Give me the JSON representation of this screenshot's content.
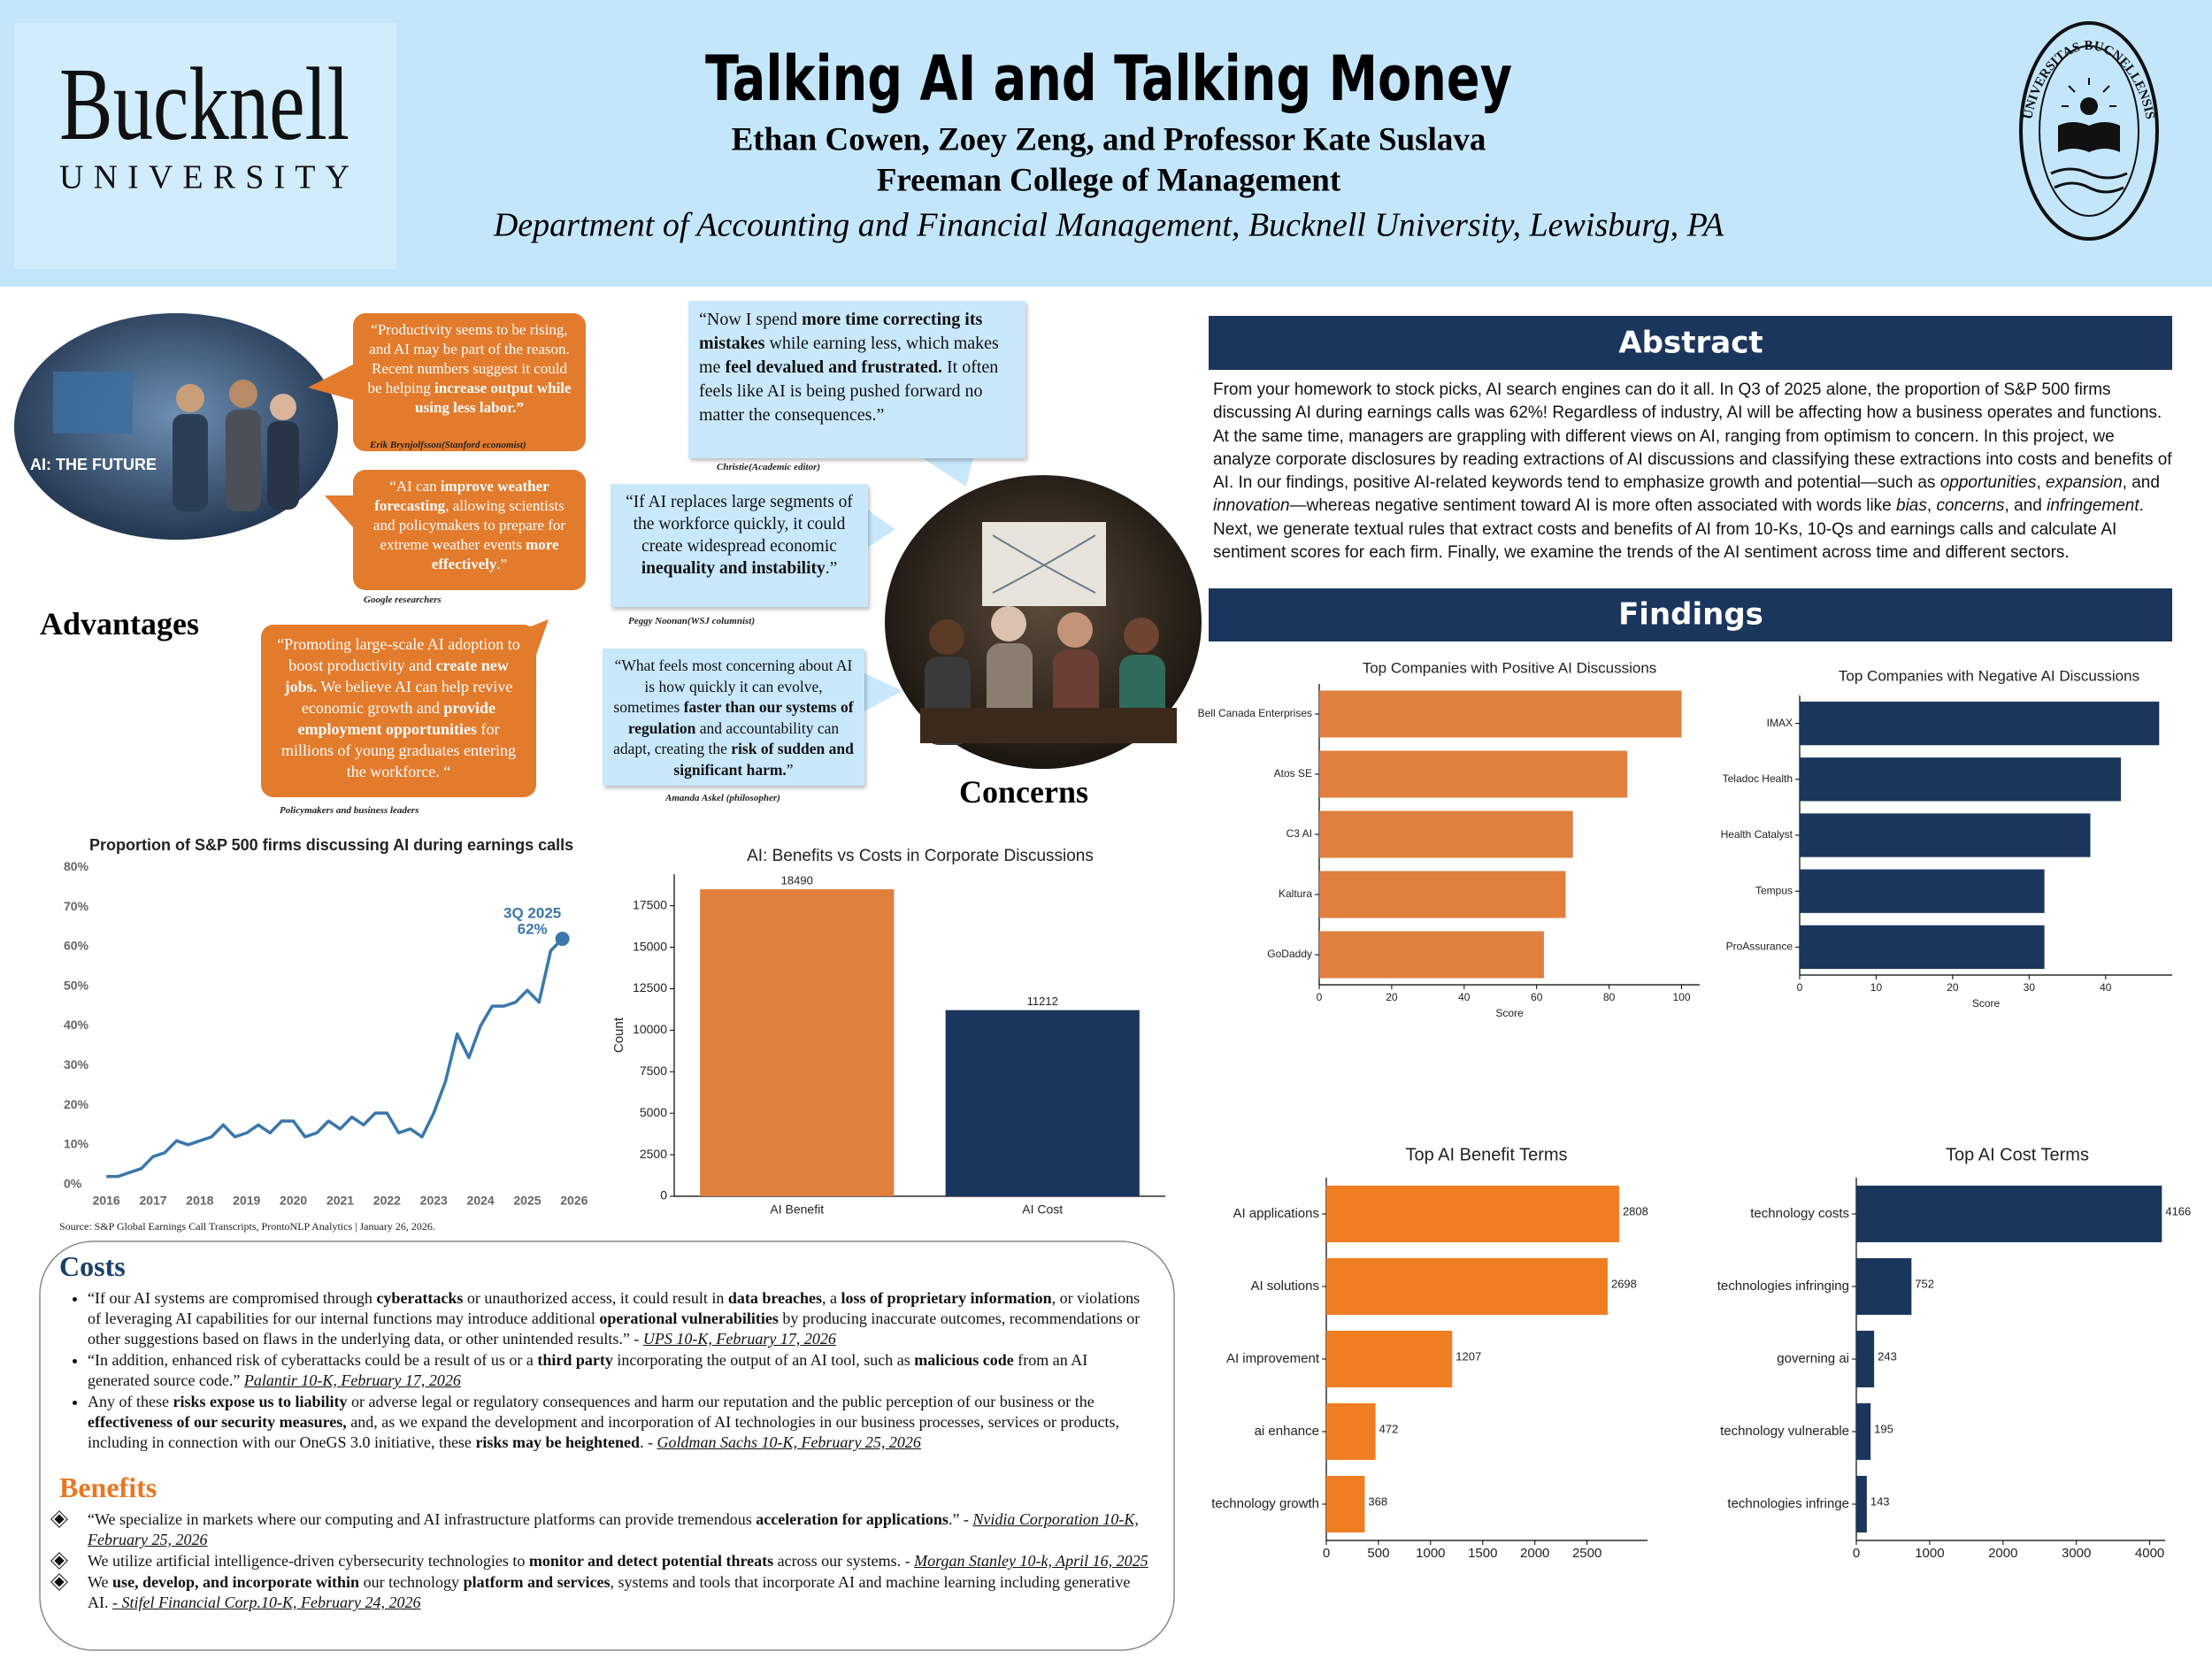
{
  "header": {
    "logo_name": "Bucknell",
    "logo_subtitle": "UNIVERSITY",
    "title": "Talking AI and Talking Money",
    "authors": "Ethan Cowen, Zoey Zeng, and Professor Kate Suslava",
    "college": "Freeman College of Management",
    "department": "Department of Accounting and Financial Management, Bucknell University, Lewisburg, PA",
    "seal_text": "UNIVERSITAS BUCNELLENSIS"
  },
  "advantages": {
    "heading": "Advantages",
    "photo_caption": "AI: THE FUTURE",
    "quotes": [
      {
        "text": [
          "“Productivity seems to be rising, and AI may be part of the reason. Recent numbers suggest it could be helping ",
          {
            "bold": "increase output while using less labor.”"
          }
        ],
        "source": "Erik Brynjolfsson(Stanford economist)"
      },
      {
        "text": [
          "“AI can ",
          {
            "bold": "improve weather forecasting"
          },
          ", allowing scientists and policymakers to prepare for extreme weather events ",
          {
            "bold": "more effectively"
          },
          ".”"
        ],
        "source": "Google researchers"
      },
      {
        "text": [
          "“Promoting large-scale AI adoption to boost productivity and ",
          {
            "bold": "create new jobs."
          },
          " We believe AI can help revive economic growth and ",
          {
            "bold": "provide employment opportunities"
          },
          " for millions of young graduates entering the workforce. “"
        ],
        "source": "Policymakers and business leaders"
      }
    ]
  },
  "concerns": {
    "heading": "Concerns",
    "quotes": [
      {
        "text": [
          "“Now I spend ",
          {
            "bold": "more time correcting its mistakes"
          },
          " while earning less, which makes me ",
          {
            "bold": "feel devalued and frustrated."
          },
          " It often feels like AI is being pushed forward no matter the consequences.”"
        ],
        "source": "Christie(Academic editor)"
      },
      {
        "text": [
          "“If AI replaces large segments of the workforce quickly, it could create widespread economic ",
          {
            "bold": "inequality and instability"
          },
          ".”"
        ],
        "source": "Peggy Noonan(WSJ columnist)"
      },
      {
        "text": [
          "“What feels most concerning about AI is how quickly it can evolve, sometimes ",
          {
            "bold": "faster than our systems of regulation"
          },
          " and accountability can adapt, creating the ",
          {
            "bold": "risk of sudden and significant harm."
          },
          "”"
        ],
        "source": "Amanda Askel (philosopher)"
      }
    ]
  },
  "abstract": {
    "heading": "Abstract",
    "text": [
      "From your homework to stock picks, AI search engines can do it all. In Q3 of 2025 alone, the proportion of S&P 500 firms discussing AI during earnings calls was 62%! Regardless of industry, AI will be affecting how a business operates and functions. At the same time, managers are grappling with different views on AI, ranging from optimism to concern. In this project, we analyze corporate disclosures by reading extractions of AI discussions and classifying these extractions into costs and benefits of AI. In our findings, positive AI-related keywords tend to emphasize growth and potential—such as ",
      {
        "italic": "opportunities"
      },
      ", ",
      {
        "italic": "expansion"
      },
      ", and ",
      {
        "italic": "innovation"
      },
      "—whereas negative sentiment toward AI is more often associated with words like ",
      {
        "italic": "bias"
      },
      ", ",
      {
        "italic": "concerns"
      },
      ", and ",
      {
        "italic": "infringement"
      },
      ". Next, we generate textual rules that extract costs and benefits of AI from 10-Ks, 10-Qs and earnings calls and calculate AI sentiment scores for each firm. Finally, we examine the trends of the AI sentiment across time and different sectors."
    ]
  },
  "findings": {
    "heading": "Findings"
  },
  "costs": {
    "heading": "Costs",
    "items": [
      [
        " “If our AI systems are compromised through ",
        {
          "bold": "cyberattacks"
        },
        " or unauthorized access, it could result in ",
        {
          "bold": "data breaches"
        },
        ", a ",
        {
          "bold": "loss of proprietary information"
        },
        ", or violations of leveraging AI capabilities for our internal functions may introduce additional ",
        {
          "bold": "operational vulnerabilities"
        },
        " by producing inaccurate outcomes, recommendations or other suggestions based on flaws in the underlying data, or other unintended results.” - ",
        {
          "cite": "UPS 10-K, February 17, 2026"
        }
      ],
      [
        "“In addition, enhanced risk of cyberattacks could be a result of us or a ",
        {
          "bold": "third party"
        },
        " incorporating the output of an AI tool, such as ",
        {
          "bold": "malicious code"
        },
        " from an AI generated source code.”  ",
        {
          "cite": "Palantir 10-K, February 17, 2026"
        }
      ],
      [
        "Any of these ",
        {
          "bold": "risks expose us to liability"
        },
        " or adverse legal or regulatory consequences and harm our reputation and the public perception of our business or the ",
        {
          "bold": "effectiveness of our security measures,"
        },
        " and, as we expand the development and incorporation of AI technologies in our business processes, services or products, including in connection with our OneGS 3.0 initiative, these ",
        {
          "bold": "risks may be heightened"
        },
        ". - ",
        {
          "cite": "Goldman Sachs 10-K, February 25, 2026"
        }
      ]
    ]
  },
  "benefits": {
    "heading": "Benefits",
    "items": [
      [
        "“We specialize in markets where our computing and AI infrastructure platforms can provide tremendous ",
        {
          "bold": "acceleration for applications"
        },
        ".” - ",
        {
          "cite": "Nvidia Corporation 10-K, February 25, 2026"
        }
      ],
      [
        "We utilize artificial intelligence-driven cybersecurity technologies to ",
        {
          "bold": "monitor and detect potential threats"
        },
        " across our systems. - ",
        {
          "cite": "Morgan Stanley 10-k, April 16, 2025"
        }
      ],
      [
        "We ",
        {
          "bold": "use, develop, and incorporate within"
        },
        " our technology ",
        {
          "bold": "platform and services"
        },
        ", systems and tools that incorporate AI and machine learning including generative AI. ",
        {
          "cite": "- Stifel Financial Corp.10-K, February 24, 2026"
        }
      ]
    ]
  },
  "chart_data": [
    {
      "type": "line",
      "title": "Proportion of S&P 500 firms discussing AI during earnings calls",
      "x": [
        2016,
        2016.25,
        2016.5,
        2016.75,
        2017,
        2017.25,
        2017.5,
        2017.75,
        2018,
        2018.25,
        2018.5,
        2018.75,
        2019,
        2019.25,
        2019.5,
        2019.75,
        2020,
        2020.25,
        2020.5,
        2020.75,
        2021,
        2021.25,
        2021.5,
        2021.75,
        2022,
        2022.25,
        2022.5,
        2022.75,
        2023,
        2023.25,
        2023.5,
        2023.75,
        2024,
        2024.25,
        2024.5,
        2024.75,
        2025,
        2025.25,
        2025.5,
        2025.75
      ],
      "values": [
        2,
        2,
        3,
        4,
        7,
        8,
        11,
        10,
        11,
        12,
        15,
        12,
        13,
        15,
        13,
        16,
        16,
        12,
        13,
        16,
        14,
        17,
        15,
        18,
        18,
        13,
        14,
        12,
        18,
        26,
        38,
        32,
        40,
        45,
        45,
        46,
        49,
        46,
        59,
        62
      ],
      "color": "#3a77ab",
      "xlim": [
        2015.6,
        2026.4
      ],
      "xticks": [
        2016,
        2017,
        2018,
        2019,
        2020,
        2021,
        2022,
        2023,
        2024,
        2025,
        2026
      ],
      "ylim": [
        -3,
        81
      ],
      "yticks": [
        {
          "value": 0,
          "label": "0%"
        },
        {
          "value": 10,
          "label": "10%"
        },
        {
          "value": 20,
          "label": "20%"
        },
        {
          "value": 30,
          "label": "30%"
        },
        {
          "value": 40,
          "label": "40%"
        },
        {
          "value": 50,
          "label": "50%"
        },
        {
          "value": 60,
          "label": "60%"
        },
        {
          "value": 70,
          "label": "70%"
        },
        {
          "value": 80,
          "label": "80%"
        }
      ],
      "annotations": [
        "3Q 2025",
        "62%"
      ],
      "source": "Source: S&P Global Earnings Call Transcripts, ProntoNLP Analytics | January 26, 2026."
    },
    {
      "type": "bar",
      "orientation": "vertical",
      "title": "AI: Benefits vs Costs in Corporate Discussions",
      "categories": [
        "AI Benefit",
        "AI Cost"
      ],
      "values": [
        18490,
        11212
      ],
      "colors": [
        "#e07f3e",
        "#1b365d"
      ],
      "ylabel": "Count",
      "ylim": [
        0,
        19400
      ],
      "yticks": [
        0,
        2500,
        5000,
        7500,
        10000,
        12500,
        15000,
        17500
      ],
      "show_values": true
    },
    {
      "type": "bar",
      "orientation": "horizontal",
      "title": "Top Companies with Positive AI Discussions",
      "categories": [
        "Bell Canada Enterprises",
        "Atos SE",
        "C3 AI",
        "Kaltura",
        "GoDaddy"
      ],
      "values": [
        100,
        85,
        70,
        68,
        62
      ],
      "color": "#e07f3e",
      "xlabel": "Score",
      "xlim": [
        0,
        105
      ],
      "xticks": [
        0,
        20,
        40,
        60,
        80,
        100
      ],
      "show_values": false
    },
    {
      "type": "bar",
      "orientation": "horizontal",
      "title": "Top Companies with Negative AI Discussions",
      "categories": [
        "IMAX",
        "Teladoc Health",
        "Health Catalyst",
        "Tempus",
        "ProAssurance"
      ],
      "values": [
        47,
        42,
        38,
        32,
        32
      ],
      "color": "#1b365d",
      "xlabel": "Score",
      "xlim": [
        0,
        48.7
      ],
      "xticks": [
        0,
        10,
        20,
        30,
        40
      ],
      "show_values": false
    },
    {
      "type": "bar",
      "orientation": "horizontal",
      "title": "Top AI Benefit Terms",
      "categories": [
        "AI applications",
        "AI solutions",
        "AI improvement",
        "ai enhance",
        "technology growth"
      ],
      "values": [
        2808,
        2698,
        1207,
        472,
        368
      ],
      "color": "#ef7d22",
      "xlim": [
        0,
        3080
      ],
      "xticks": [
        0,
        500,
        1000,
        1500,
        2000,
        2500
      ],
      "show_values": true
    },
    {
      "type": "bar",
      "orientation": "horizontal",
      "title": "Top AI Cost Terms",
      "categories": [
        "technology costs",
        "technologies infringing",
        "governing ai",
        "technology vulnerable",
        "technologies infringe"
      ],
      "values": [
        4166,
        752,
        243,
        195,
        143
      ],
      "color": "#1b365d",
      "xlim": [
        0,
        4210
      ],
      "xticks": [
        0,
        1000,
        2000,
        3000,
        4000
      ],
      "show_values": true
    }
  ]
}
